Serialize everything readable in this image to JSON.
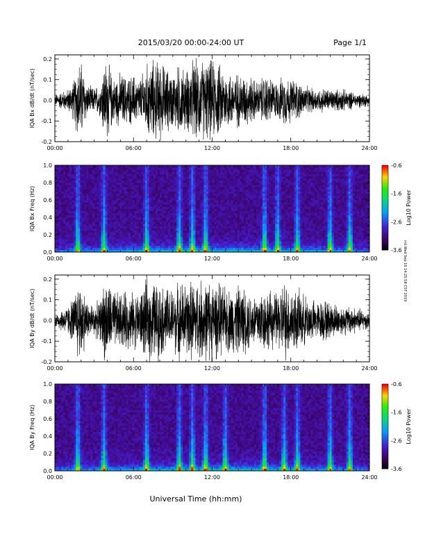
{
  "header": {
    "title": "2015/03/20  00:00-24:00 UT",
    "page_label": "Page 1/1"
  },
  "footer": {
    "xlabel": "Universal Time (hh:mm)",
    "side_stamp": "rrd Wed Sep 16 14:25:58 CST 2019"
  },
  "chart_data": [
    {
      "type": "line",
      "ylabel": "IQA Bx dB/dt (nT/sec)",
      "xlim": [
        0,
        24
      ],
      "ylim": [
        -0.2,
        0.22
      ],
      "x_ticks": [
        "00:00",
        "06:00",
        "12:00",
        "18:00",
        "24:00"
      ],
      "y_ticks": [
        "-0.2",
        "-0.1",
        "0.0",
        "0.1",
        "0.2"
      ],
      "y_tick_values": [
        -0.2,
        -0.1,
        0.0,
        0.1,
        0.2
      ],
      "envelope": {
        "x_hours": [
          0,
          0.5,
          1,
          1.5,
          1.75,
          2,
          2.5,
          3,
          3.5,
          3.75,
          4,
          4.5,
          5,
          5.5,
          6,
          6.5,
          7,
          7.5,
          8,
          8.5,
          9,
          9.5,
          10,
          10.5,
          11,
          11.5,
          12,
          12.5,
          13,
          13.5,
          14,
          14.5,
          15,
          15.5,
          16,
          16.5,
          17,
          17.5,
          18,
          18.5,
          19,
          19.5,
          20,
          20.5,
          21,
          21.5,
          22,
          22.5,
          23,
          23.5,
          24
        ],
        "amplitude": [
          0.03,
          0.05,
          0.06,
          0.12,
          0.22,
          0.22,
          0.08,
          0.07,
          0.09,
          0.22,
          0.22,
          0.12,
          0.15,
          0.13,
          0.14,
          0.12,
          0.2,
          0.22,
          0.22,
          0.18,
          0.15,
          0.2,
          0.16,
          0.22,
          0.22,
          0.22,
          0.22,
          0.2,
          0.17,
          0.15,
          0.15,
          0.14,
          0.13,
          0.1,
          0.14,
          0.12,
          0.1,
          0.14,
          0.12,
          0.11,
          0.08,
          0.07,
          0.06,
          0.07,
          0.06,
          0.06,
          0.06,
          0.05,
          0.04,
          0.04,
          0.03
        ]
      }
    },
    {
      "type": "heatmap",
      "ylabel": "IQA Bx Freq (Hz)",
      "xlim": [
        0,
        24
      ],
      "ylim": [
        0,
        1.0
      ],
      "x_ticks": [
        "00:00",
        "06:00",
        "12:00",
        "18:00",
        "24:00"
      ],
      "y_ticks": [
        "0.0",
        "0.2",
        "0.4",
        "0.6",
        "0.8",
        "1.0"
      ],
      "y_tick_values": [
        0,
        0.2,
        0.4,
        0.6,
        0.8,
        1.0
      ],
      "colorbar": {
        "label": "Log10 Power",
        "range": [
          -3.6,
          -0.6
        ],
        "ticks": [
          "-0.6",
          "-1.6",
          "-2.6",
          "-3.6"
        ],
        "tick_values": [
          -0.6,
          -1.6,
          -2.6,
          -3.6
        ]
      },
      "bursts_hours": [
        1.75,
        3.75,
        7.0,
        9.5,
        10.5,
        11.5,
        16.0,
        17.0,
        18.5,
        21.0,
        22.5
      ]
    },
    {
      "type": "line",
      "ylabel": "IQA By dB/dt (nT/sec)",
      "xlim": [
        0,
        24
      ],
      "ylim": [
        -0.2,
        0.22
      ],
      "x_ticks": [
        "00:00",
        "06:00",
        "12:00",
        "18:00",
        "24:00"
      ],
      "y_ticks": [
        "-0.2",
        "-0.1",
        "0.0",
        "0.1",
        "0.2"
      ],
      "y_tick_values": [
        -0.2,
        -0.1,
        0.0,
        0.1,
        0.2
      ],
      "envelope": {
        "x_hours": [
          0,
          0.5,
          1,
          1.5,
          1.75,
          2,
          2.5,
          3,
          3.5,
          3.75,
          4,
          4.5,
          5,
          5.5,
          6,
          6.5,
          7,
          7.5,
          8,
          8.5,
          9,
          9.5,
          10,
          10.5,
          11,
          11.5,
          12,
          12.5,
          13,
          13.5,
          14,
          14.5,
          15,
          15.5,
          16,
          16.5,
          17,
          17.5,
          18,
          18.5,
          19,
          19.5,
          20,
          20.5,
          21,
          21.5,
          22,
          22.5,
          23,
          23.5,
          24
        ],
        "amplitude": [
          0.04,
          0.06,
          0.08,
          0.14,
          0.22,
          0.22,
          0.1,
          0.09,
          0.11,
          0.22,
          0.22,
          0.16,
          0.15,
          0.16,
          0.15,
          0.16,
          0.22,
          0.22,
          0.2,
          0.18,
          0.17,
          0.22,
          0.2,
          0.22,
          0.22,
          0.22,
          0.22,
          0.2,
          0.18,
          0.18,
          0.19,
          0.18,
          0.15,
          0.16,
          0.17,
          0.16,
          0.15,
          0.22,
          0.18,
          0.17,
          0.14,
          0.12,
          0.1,
          0.12,
          0.1,
          0.09,
          0.08,
          0.08,
          0.07,
          0.06,
          0.05
        ]
      }
    },
    {
      "type": "heatmap",
      "ylabel": "IQA By Freq (Hz)",
      "xlim": [
        0,
        24
      ],
      "ylim": [
        0,
        1.0
      ],
      "x_ticks": [
        "00:00",
        "06:00",
        "12:00",
        "18:00",
        "24:00"
      ],
      "y_ticks": [
        "0.0",
        "0.2",
        "0.4",
        "0.6",
        "0.8",
        "1.0"
      ],
      "y_tick_values": [
        0,
        0.2,
        0.4,
        0.6,
        0.8,
        1.0
      ],
      "colorbar": {
        "label": "Log10 Power",
        "range": [
          -3.6,
          -0.6
        ],
        "ticks": [
          "-0.6",
          "-1.6",
          "-2.6",
          "-3.6"
        ],
        "tick_values": [
          -0.6,
          -1.6,
          -2.6,
          -3.6
        ]
      },
      "bursts_hours": [
        1.75,
        3.75,
        7.0,
        9.5,
        10.5,
        11.5,
        13.0,
        16.0,
        17.5,
        18.5,
        21.0,
        22.5
      ]
    }
  ]
}
